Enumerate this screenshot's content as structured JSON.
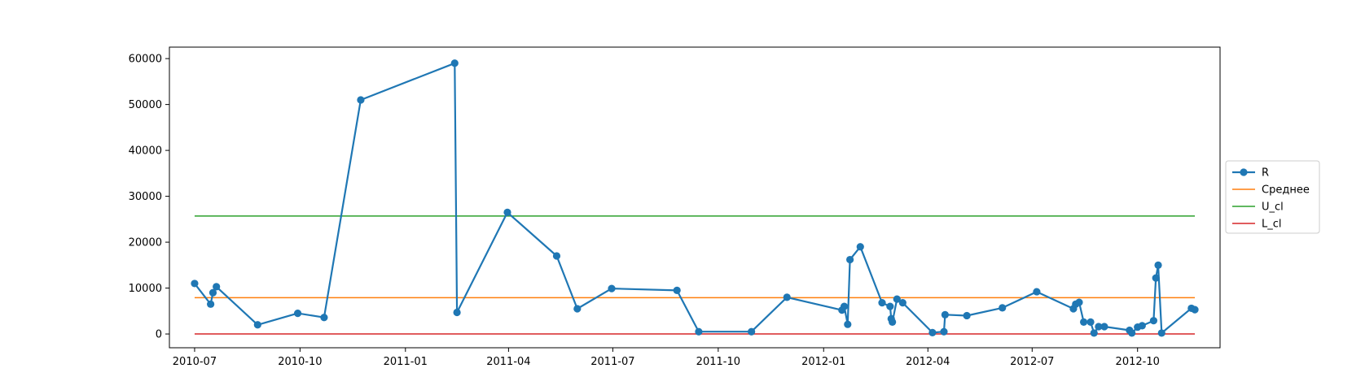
{
  "chart_data": {
    "type": "line",
    "title": "",
    "xlabel": "",
    "ylabel": "",
    "xlim": [
      "2010-06-09",
      "2012-12-12"
    ],
    "ylim": [
      -3000,
      62500
    ],
    "x_ticks": [
      "2010-07-01",
      "2010-10-01",
      "2011-01-01",
      "2011-04-01",
      "2011-07-01",
      "2011-10-01",
      "2012-01-01",
      "2012-04-01",
      "2012-07-01",
      "2012-10-01"
    ],
    "x_tick_labels": [
      "2010-07",
      "2010-10",
      "2011-01",
      "2011-04",
      "2011-07",
      "2011-10",
      "2012-01",
      "2012-04",
      "2012-07",
      "2012-10"
    ],
    "y_ticks": [
      0,
      10000,
      20000,
      30000,
      40000,
      50000,
      60000
    ],
    "y_tick_labels": [
      "0",
      "10000",
      "20000",
      "30000",
      "40000",
      "50000",
      "60000"
    ],
    "grid": false,
    "legend_position": "center-right, outside plot",
    "series": [
      {
        "name": "R",
        "color": "#1f77b4",
        "marker": "circle",
        "points": [
          [
            "2010-07-01",
            11000
          ],
          [
            "2010-07-15",
            6500
          ],
          [
            "2010-07-17",
            9000
          ],
          [
            "2010-07-20",
            10300
          ],
          [
            "2010-08-25",
            2000
          ],
          [
            "2010-09-29",
            4500
          ],
          [
            "2010-10-22",
            3600
          ],
          [
            "2010-11-23",
            51000
          ],
          [
            "2011-02-13",
            59000
          ],
          [
            "2011-02-15",
            4700
          ],
          [
            "2011-03-31",
            26500
          ],
          [
            "2011-05-13",
            17000
          ],
          [
            "2011-05-31",
            5500
          ],
          [
            "2011-06-30",
            9900
          ],
          [
            "2011-08-26",
            9500
          ],
          [
            "2011-09-14",
            500
          ],
          [
            "2011-10-30",
            500
          ],
          [
            "2011-11-30",
            8000
          ],
          [
            "2012-01-17",
            5200
          ],
          [
            "2012-01-19",
            6000
          ],
          [
            "2012-01-22",
            2100
          ],
          [
            "2012-01-24",
            16200
          ],
          [
            "2012-02-02",
            19000
          ],
          [
            "2012-02-21",
            6800
          ],
          [
            "2012-02-28",
            6000
          ],
          [
            "2012-02-29",
            3300
          ],
          [
            "2012-03-01",
            2600
          ],
          [
            "2012-03-05",
            7600
          ],
          [
            "2012-03-10",
            6800
          ],
          [
            "2012-04-05",
            300
          ],
          [
            "2012-04-15",
            500
          ],
          [
            "2012-04-16",
            4200
          ],
          [
            "2012-05-05",
            4000
          ],
          [
            "2012-06-05",
            5700
          ],
          [
            "2012-07-05",
            9200
          ],
          [
            "2012-08-06",
            5500
          ],
          [
            "2012-08-08",
            6500
          ],
          [
            "2012-08-11",
            6900
          ],
          [
            "2012-08-15",
            2600
          ],
          [
            "2012-08-21",
            2600
          ],
          [
            "2012-08-24",
            200
          ],
          [
            "2012-08-28",
            1600
          ],
          [
            "2012-09-02",
            1600
          ],
          [
            "2012-09-24",
            800
          ],
          [
            "2012-09-26",
            200
          ],
          [
            "2012-10-01",
            1500
          ],
          [
            "2012-10-05",
            1800
          ],
          [
            "2012-10-15",
            2900
          ],
          [
            "2012-10-17",
            12200
          ],
          [
            "2012-10-19",
            15000
          ],
          [
            "2012-10-22",
            200
          ],
          [
            "2012-11-17",
            5600
          ],
          [
            "2012-11-20",
            5300
          ]
        ]
      },
      {
        "name": "Среднее",
        "color": "#ff7f0e",
        "x_range": [
          "2010-07-01",
          "2012-11-20"
        ],
        "value": 7900
      },
      {
        "name": "U_cl",
        "color": "#2ca02c",
        "x_range": [
          "2010-07-01",
          "2012-11-20"
        ],
        "value": 25700
      },
      {
        "name": "L_cl",
        "color": "#d62728",
        "x_range": [
          "2010-07-01",
          "2012-11-20"
        ],
        "value": 0
      }
    ]
  }
}
